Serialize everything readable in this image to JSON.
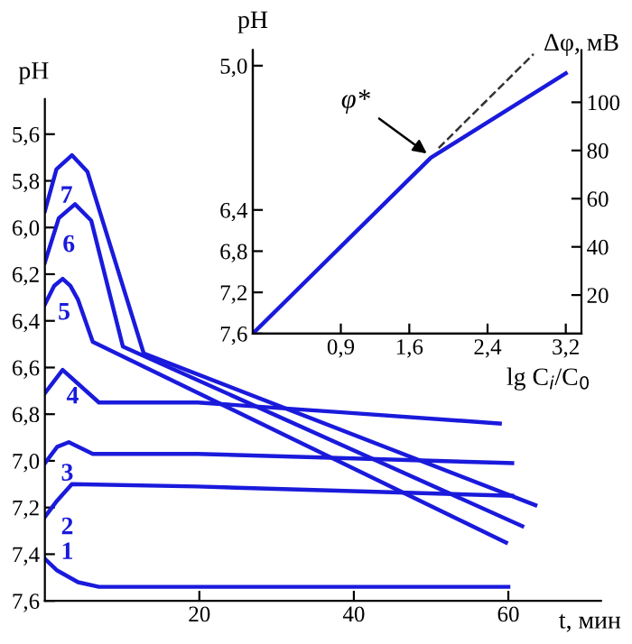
{
  "chart_data": [
    {
      "type": "line",
      "xlabel": "t, мин",
      "ylabel": "pH",
      "xlim": [
        0,
        72
      ],
      "ylim": [
        7.6,
        5.45
      ],
      "xticks": [
        20,
        40,
        60
      ],
      "yticks": [
        {
          "value": 5.6,
          "label": "5,6"
        },
        {
          "value": 5.8,
          "label": "5,8"
        },
        {
          "value": 6.0,
          "label": "6,0"
        },
        {
          "value": 6.2,
          "label": "6,2"
        },
        {
          "value": 6.4,
          "label": "6,4"
        },
        {
          "value": 6.6,
          "label": "6,6"
        },
        {
          "value": 6.8,
          "label": "6,8"
        },
        {
          "value": 7.0,
          "label": "7,0"
        },
        {
          "value": 7.2,
          "label": "7,2"
        },
        {
          "value": 7.4,
          "label": "7,4"
        },
        {
          "value": 7.6,
          "label": "7,6"
        }
      ],
      "grid": false,
      "marker": "none",
      "line_style": "solid",
      "series": [
        {
          "name": "1",
          "color": "#1a1adc",
          "x": [
            0,
            1.6,
            4.3,
            7,
            60
          ],
          "values": [
            7.42,
            7.47,
            7.52,
            7.54,
            7.54
          ]
        },
        {
          "name": "2",
          "color": "#1a1adc",
          "x": [
            0,
            1.6,
            3.5,
            19.8,
            60.5
          ],
          "values": [
            7.24,
            7.17,
            7.1,
            7.11,
            7.15
          ]
        },
        {
          "name": "3",
          "color": "#1a1adc",
          "x": [
            0,
            1.6,
            3.1,
            6.2,
            19.8,
            60.5
          ],
          "values": [
            7.01,
            6.94,
            6.92,
            6.97,
            6.97,
            7.01
          ]
        },
        {
          "name": "4",
          "color": "#1a1adc",
          "x": [
            0,
            2.3,
            7.0,
            19.8,
            37.6,
            58.9
          ],
          "values": [
            6.71,
            6.61,
            6.75,
            6.75,
            6.79,
            6.84
          ]
        },
        {
          "name": "5",
          "color": "#1a1adc",
          "x": [
            0,
            1.2,
            2.3,
            3.3,
            4.3,
            6.2,
            59.7
          ],
          "values": [
            6.33,
            6.25,
            6.22,
            6.25,
            6.31,
            6.49,
            7.35
          ]
        },
        {
          "name": "6",
          "color": "#1a1adc",
          "x": [
            0,
            1.8,
            3.9,
            6,
            10.1,
            61.8
          ],
          "values": [
            6.15,
            5.96,
            5.9,
            5.97,
            6.51,
            7.28
          ]
        },
        {
          "name": "7",
          "color": "#1a1adc",
          "x": [
            0,
            1.5,
            3.5,
            5.5,
            12.8,
            63.5
          ],
          "values": [
            5.93,
            5.75,
            5.69,
            5.76,
            6.54,
            7.19
          ]
        }
      ]
    },
    {
      "type": "line",
      "xlabel": "lg C$_{i}$/C$_{0}$",
      "ylabel": "pH",
      "y2label": "Δφ, мВ",
      "xlim": [
        0,
        3.36
      ],
      "ylim": [
        7.6,
        4.85
      ],
      "y2lim": [
        4,
        121.6
      ],
      "xticks": [
        {
          "value": 0.9,
          "label": "0,9"
        },
        {
          "value": 1.6,
          "label": "1,6"
        },
        {
          "value": 2.4,
          "label": "2,4"
        },
        {
          "value": 3.2,
          "label": "3,2"
        }
      ],
      "yticks": [
        {
          "value": 7.6,
          "label": "7,6"
        },
        {
          "value": 7.2,
          "label": "7,2"
        },
        {
          "value": 6.8,
          "label": "6,8"
        },
        {
          "value": 6.4,
          "label": "6,4"
        },
        {
          "value": 5.0,
          "label": "5,0"
        }
      ],
      "y2ticks": [
        20,
        40,
        60,
        80,
        100
      ],
      "grid": false,
      "marker": "none",
      "series": [
        {
          "color": "#1a1adc",
          "axis": "y2",
          "line_style": "solid",
          "x": [
            0,
            1.82,
            3.2
          ],
          "values": [
            4,
            77,
            112
          ]
        },
        {
          "color": "#333333",
          "axis": "y2",
          "line_style": "dashed",
          "x": [
            1.9,
            2.87
          ],
          "values": [
            81,
            120
          ]
        }
      ],
      "annotations": [
        {
          "text": "φ*",
          "x": 1.82,
          "y": 5.88
        }
      ]
    }
  ]
}
